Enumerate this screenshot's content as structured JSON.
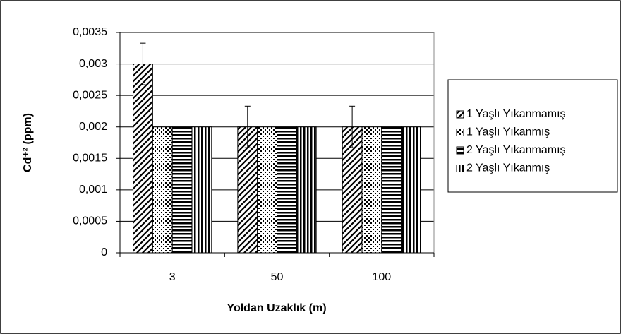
{
  "chart_data": {
    "type": "bar",
    "categories": [
      "3",
      "50",
      "100"
    ],
    "x_label": "Yoldan Uzaklık (m)",
    "y_label": "Cd⁺² (ppm)",
    "series": [
      {
        "name": "1 Yaşlı Yıkanmamış",
        "color": "#000000",
        "pattern": "diagonal",
        "values": [
          0.003,
          0.002,
          0.002
        ],
        "errors": [
          0.00033,
          0.00033,
          0.00033
        ]
      },
      {
        "name": "1 Yaşlı Yıkanmış",
        "color": "#000000",
        "pattern": "dots",
        "values": [
          0.002,
          0.002,
          0.002
        ]
      },
      {
        "name": "2 Yaşlı Yıkanmamış",
        "color": "#000000",
        "pattern": "horizontal",
        "values": [
          0.002,
          0.002,
          0.002
        ]
      },
      {
        "name": "2 Yaşlı Yıkanmış",
        "color": "#000000",
        "pattern": "vertical",
        "values": [
          0.002,
          0.002,
          0.002
        ]
      }
    ],
    "ylim": [
      0,
      0.0035
    ],
    "yticks": [
      0,
      {
        "value": 0.0005,
        "label": "0,0005"
      },
      {
        "value": 0.001,
        "label": "0,001"
      },
      {
        "value": 0.0015,
        "label": "0,0015"
      },
      {
        "value": 0.002,
        "label": "0,002"
      },
      {
        "value": 0.0025,
        "label": "0,0025"
      },
      {
        "value": 0.003,
        "label": "0,003"
      },
      {
        "value": 0.0035,
        "label": "0,0035"
      }
    ],
    "grid": true,
    "legend": "right"
  }
}
